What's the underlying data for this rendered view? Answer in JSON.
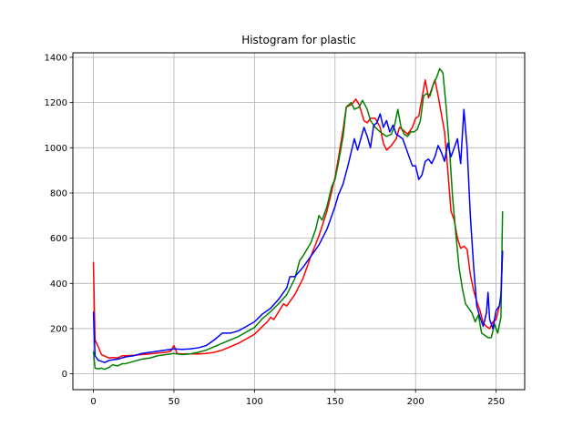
{
  "chart_data": {
    "type": "line",
    "title": "Histogram for plastic",
    "xlabel": "",
    "ylabel": "",
    "xlim": [
      -12.75,
      267.75
    ],
    "ylim": [
      -70,
      1420
    ],
    "xticks": [
      0,
      50,
      100,
      150,
      200,
      250
    ],
    "yticks": [
      0,
      200,
      400,
      600,
      800,
      1000,
      1200,
      1400
    ],
    "grid": true,
    "series": [
      {
        "color": "#ff0000",
        "points": [
          [
            0,
            495
          ],
          [
            1,
            150
          ],
          [
            3,
            120
          ],
          [
            5,
            85
          ],
          [
            8,
            75
          ],
          [
            10,
            70
          ],
          [
            12,
            72
          ],
          [
            15,
            70
          ],
          [
            18,
            80
          ],
          [
            20,
            80
          ],
          [
            25,
            82
          ],
          [
            30,
            85
          ],
          [
            35,
            88
          ],
          [
            40,
            92
          ],
          [
            45,
            95
          ],
          [
            48,
            100
          ],
          [
            50,
            125
          ],
          [
            52,
            90
          ],
          [
            55,
            88
          ],
          [
            60,
            88
          ],
          [
            65,
            88
          ],
          [
            70,
            90
          ],
          [
            75,
            95
          ],
          [
            80,
            105
          ],
          [
            85,
            120
          ],
          [
            90,
            135
          ],
          [
            95,
            155
          ],
          [
            100,
            175
          ],
          [
            105,
            210
          ],
          [
            108,
            230
          ],
          [
            110,
            250
          ],
          [
            112,
            240
          ],
          [
            115,
            275
          ],
          [
            118,
            310
          ],
          [
            120,
            300
          ],
          [
            125,
            350
          ],
          [
            130,
            420
          ],
          [
            135,
            520
          ],
          [
            140,
            610
          ],
          [
            145,
            720
          ],
          [
            148,
            810
          ],
          [
            150,
            870
          ],
          [
            152,
            950
          ],
          [
            155,
            1080
          ],
          [
            157,
            1180
          ],
          [
            160,
            1190
          ],
          [
            163,
            1215
          ],
          [
            165,
            1190
          ],
          [
            168,
            1120
          ],
          [
            170,
            1110
          ],
          [
            172,
            1130
          ],
          [
            175,
            1130
          ],
          [
            178,
            1090
          ],
          [
            180,
            1020
          ],
          [
            182,
            990
          ],
          [
            185,
            1010
          ],
          [
            188,
            1040
          ],
          [
            190,
            1090
          ],
          [
            192,
            1080
          ],
          [
            195,
            1060
          ],
          [
            198,
            1090
          ],
          [
            200,
            1130
          ],
          [
            202,
            1140
          ],
          [
            204,
            1220
          ],
          [
            206,
            1300
          ],
          [
            208,
            1220
          ],
          [
            210,
            1260
          ],
          [
            212,
            1300
          ],
          [
            214,
            1230
          ],
          [
            216,
            1150
          ],
          [
            218,
            1070
          ],
          [
            220,
            900
          ],
          [
            222,
            720
          ],
          [
            224,
            680
          ],
          [
            226,
            600
          ],
          [
            228,
            555
          ],
          [
            230,
            565
          ],
          [
            232,
            550
          ],
          [
            234,
            440
          ],
          [
            236,
            370
          ],
          [
            238,
            320
          ],
          [
            240,
            280
          ],
          [
            242,
            225
          ],
          [
            244,
            210
          ],
          [
            246,
            200
          ],
          [
            248,
            230
          ],
          [
            250,
            240
          ],
          [
            252,
            300
          ],
          [
            253,
            330
          ],
          [
            254,
            540
          ]
        ]
      },
      {
        "color": "#008000",
        "points": [
          [
            0,
            100
          ],
          [
            1,
            25
          ],
          [
            3,
            22
          ],
          [
            5,
            25
          ],
          [
            7,
            20
          ],
          [
            10,
            30
          ],
          [
            12,
            40
          ],
          [
            15,
            35
          ],
          [
            18,
            45
          ],
          [
            20,
            45
          ],
          [
            25,
            55
          ],
          [
            30,
            65
          ],
          [
            35,
            70
          ],
          [
            40,
            80
          ],
          [
            45,
            85
          ],
          [
            50,
            90
          ],
          [
            55,
            85
          ],
          [
            60,
            88
          ],
          [
            65,
            95
          ],
          [
            70,
            105
          ],
          [
            75,
            120
          ],
          [
            80,
            135
          ],
          [
            85,
            150
          ],
          [
            90,
            165
          ],
          [
            95,
            185
          ],
          [
            100,
            205
          ],
          [
            105,
            245
          ],
          [
            110,
            275
          ],
          [
            115,
            310
          ],
          [
            120,
            350
          ],
          [
            125,
            420
          ],
          [
            128,
            500
          ],
          [
            130,
            520
          ],
          [
            135,
            580
          ],
          [
            138,
            640
          ],
          [
            140,
            700
          ],
          [
            142,
            680
          ],
          [
            145,
            740
          ],
          [
            148,
            830
          ],
          [
            150,
            860
          ],
          [
            152,
            930
          ],
          [
            155,
            1050
          ],
          [
            157,
            1180
          ],
          [
            160,
            1200
          ],
          [
            162,
            1170
          ],
          [
            165,
            1180
          ],
          [
            167,
            1210
          ],
          [
            170,
            1170
          ],
          [
            172,
            1120
          ],
          [
            175,
            1090
          ],
          [
            178,
            1070
          ],
          [
            180,
            1060
          ],
          [
            182,
            1050
          ],
          [
            185,
            1060
          ],
          [
            187,
            1100
          ],
          [
            189,
            1170
          ],
          [
            191,
            1090
          ],
          [
            193,
            1060
          ],
          [
            195,
            1050
          ],
          [
            197,
            1070
          ],
          [
            199,
            1070
          ],
          [
            201,
            1080
          ],
          [
            203,
            1120
          ],
          [
            205,
            1230
          ],
          [
            207,
            1240
          ],
          [
            209,
            1230
          ],
          [
            211,
            1280
          ],
          [
            213,
            1310
          ],
          [
            215,
            1350
          ],
          [
            217,
            1330
          ],
          [
            219,
            1180
          ],
          [
            221,
            1000
          ],
          [
            223,
            780
          ],
          [
            225,
            620
          ],
          [
            227,
            470
          ],
          [
            229,
            380
          ],
          [
            231,
            310
          ],
          [
            233,
            290
          ],
          [
            235,
            270
          ],
          [
            237,
            230
          ],
          [
            239,
            260
          ],
          [
            241,
            180
          ],
          [
            243,
            170
          ],
          [
            245,
            160
          ],
          [
            247,
            160
          ],
          [
            249,
            220
          ],
          [
            251,
            180
          ],
          [
            253,
            250
          ],
          [
            254,
            720
          ]
        ]
      },
      {
        "color": "#0000ff",
        "points": [
          [
            0,
            275
          ],
          [
            1,
            80
          ],
          [
            3,
            60
          ],
          [
            5,
            55
          ],
          [
            7,
            50
          ],
          [
            10,
            60
          ],
          [
            15,
            65
          ],
          [
            20,
            75
          ],
          [
            25,
            80
          ],
          [
            30,
            90
          ],
          [
            35,
            95
          ],
          [
            40,
            100
          ],
          [
            45,
            105
          ],
          [
            50,
            110
          ],
          [
            55,
            108
          ],
          [
            60,
            110
          ],
          [
            65,
            115
          ],
          [
            70,
            125
          ],
          [
            75,
            150
          ],
          [
            80,
            180
          ],
          [
            85,
            180
          ],
          [
            90,
            190
          ],
          [
            95,
            210
          ],
          [
            100,
            230
          ],
          [
            105,
            265
          ],
          [
            110,
            290
          ],
          [
            115,
            330
          ],
          [
            120,
            380
          ],
          [
            122,
            430
          ],
          [
            125,
            430
          ],
          [
            130,
            470
          ],
          [
            135,
            520
          ],
          [
            140,
            570
          ],
          [
            145,
            640
          ],
          [
            148,
            700
          ],
          [
            150,
            740
          ],
          [
            152,
            790
          ],
          [
            155,
            840
          ],
          [
            158,
            920
          ],
          [
            160,
            980
          ],
          [
            162,
            1040
          ],
          [
            164,
            990
          ],
          [
            166,
            1040
          ],
          [
            168,
            1090
          ],
          [
            170,
            1050
          ],
          [
            172,
            1000
          ],
          [
            174,
            1100
          ],
          [
            176,
            1110
          ],
          [
            178,
            1150
          ],
          [
            180,
            1090
          ],
          [
            182,
            1120
          ],
          [
            184,
            1070
          ],
          [
            186,
            1100
          ],
          [
            188,
            1060
          ],
          [
            190,
            1050
          ],
          [
            192,
            1040
          ],
          [
            194,
            1000
          ],
          [
            196,
            960
          ],
          [
            198,
            920
          ],
          [
            200,
            920
          ],
          [
            202,
            860
          ],
          [
            204,
            880
          ],
          [
            206,
            940
          ],
          [
            208,
            950
          ],
          [
            210,
            930
          ],
          [
            212,
            960
          ],
          [
            214,
            1010
          ],
          [
            216,
            980
          ],
          [
            218,
            940
          ],
          [
            220,
            1020
          ],
          [
            222,
            960
          ],
          [
            224,
            1000
          ],
          [
            226,
            1040
          ],
          [
            228,
            930
          ],
          [
            230,
            1170
          ],
          [
            232,
            1000
          ],
          [
            234,
            700
          ],
          [
            236,
            480
          ],
          [
            238,
            300
          ],
          [
            240,
            250
          ],
          [
            242,
            210
          ],
          [
            244,
            270
          ],
          [
            245,
            360
          ],
          [
            246,
            240
          ],
          [
            248,
            200
          ],
          [
            250,
            280
          ],
          [
            252,
            300
          ],
          [
            253,
            350
          ],
          [
            254,
            545
          ]
        ]
      }
    ]
  }
}
